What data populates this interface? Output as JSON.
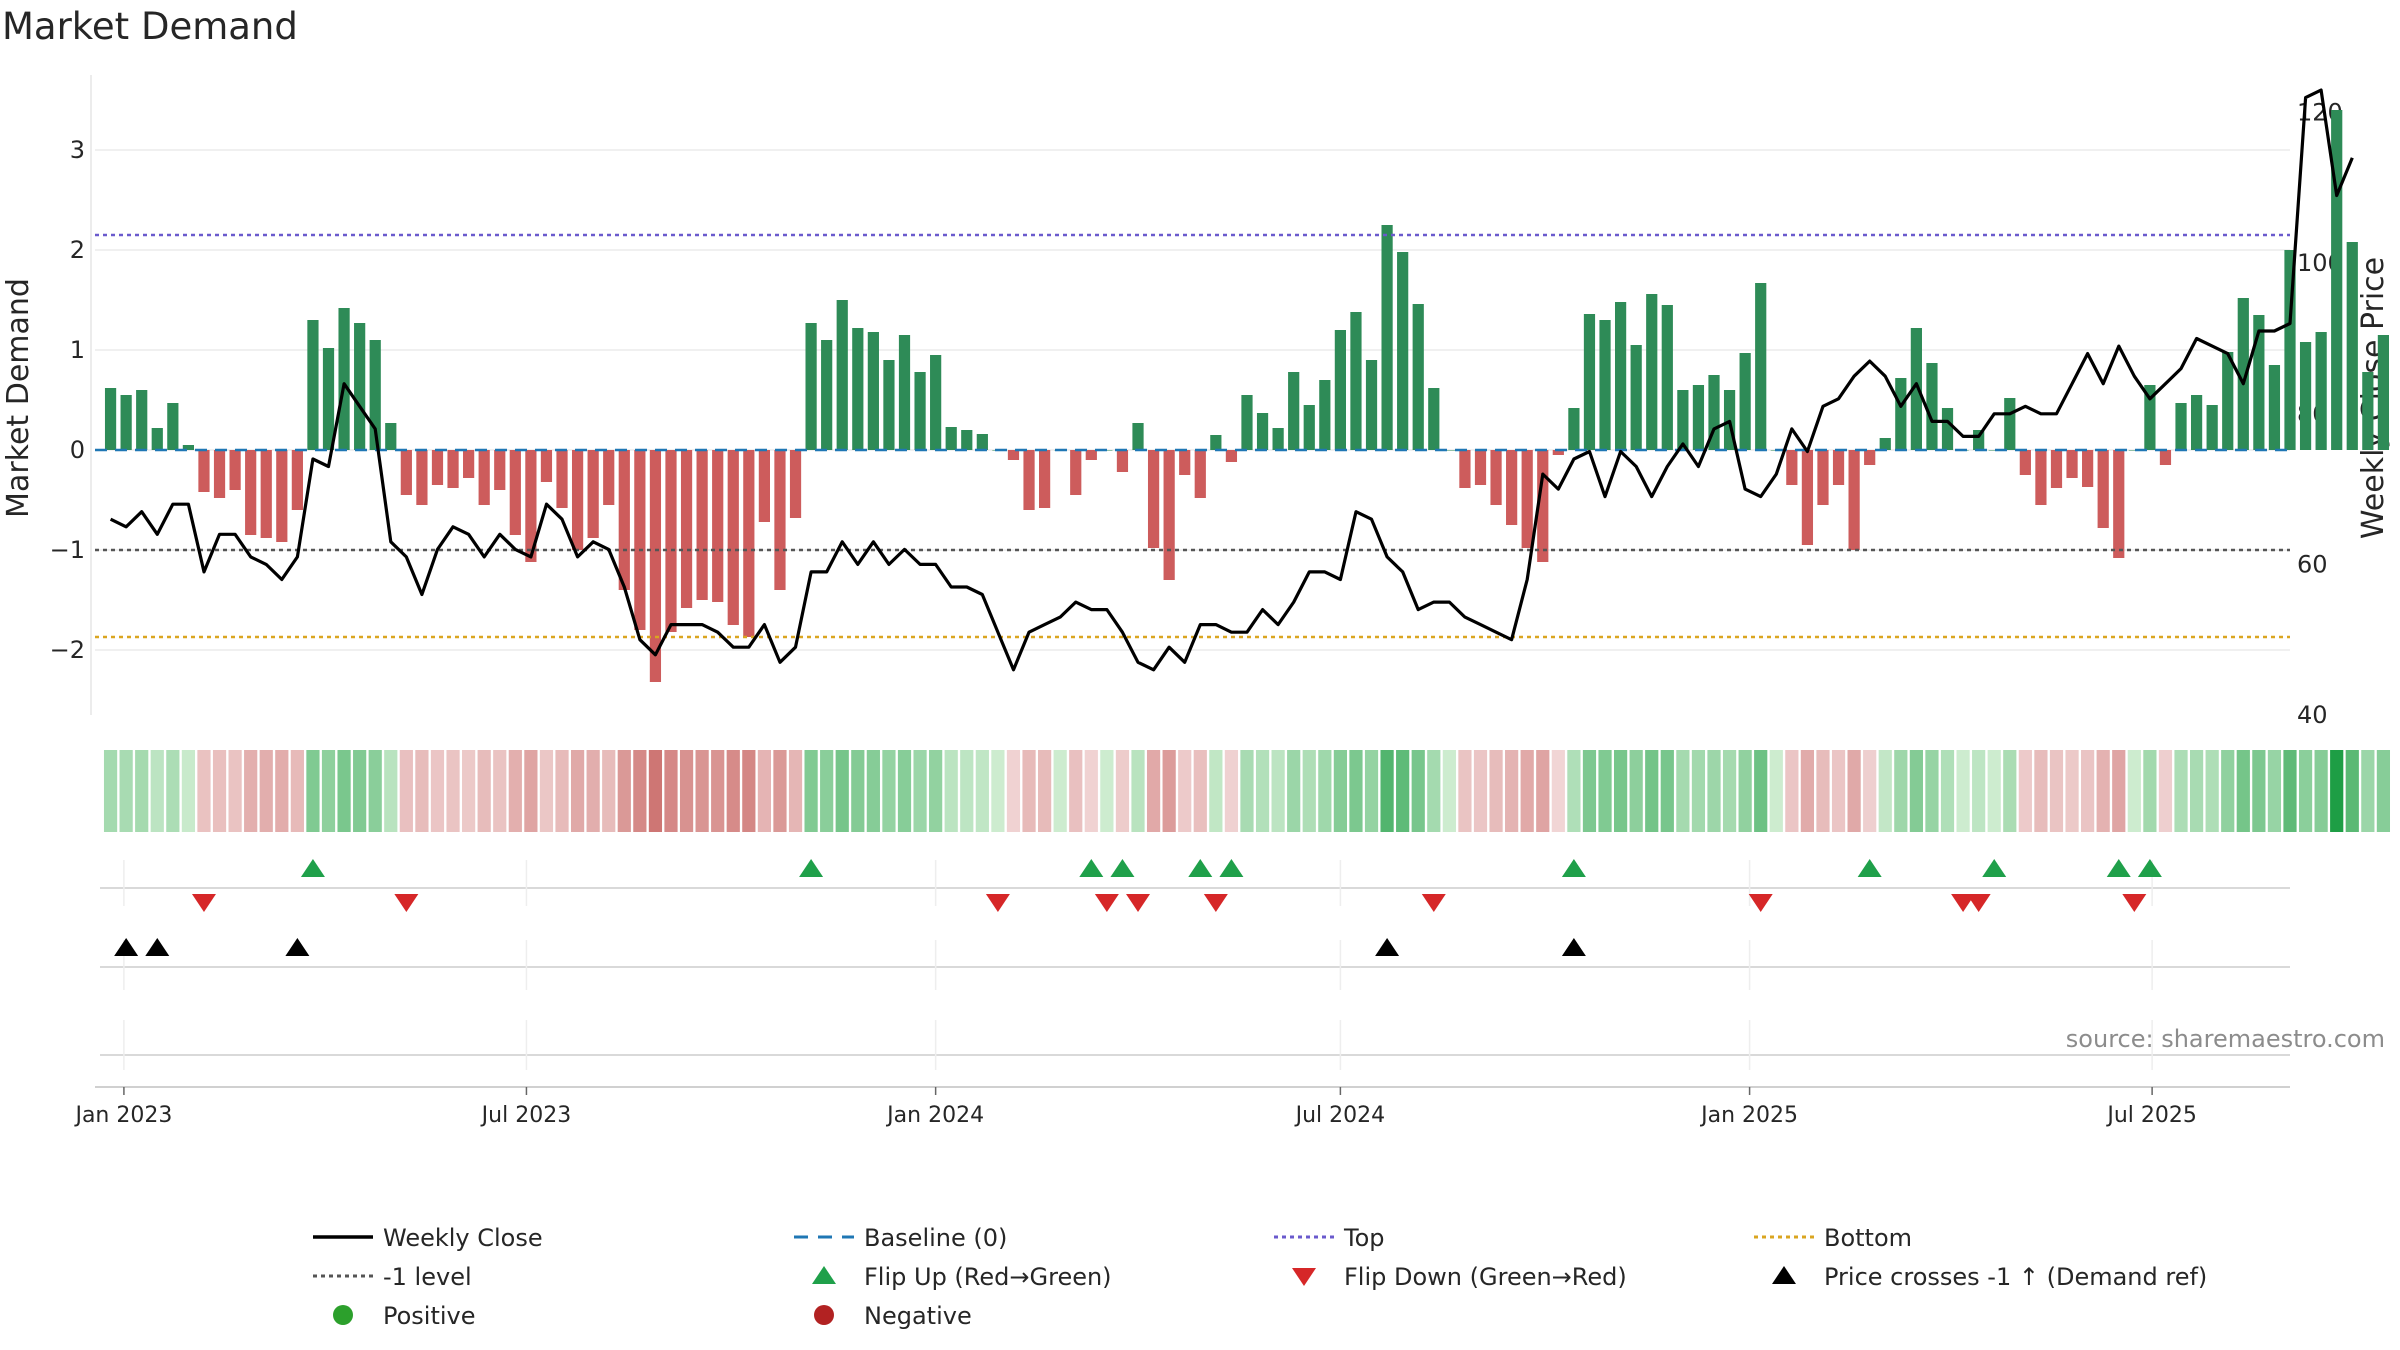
{
  "chart_data": {
    "type": "bar",
    "title": "Market Demand",
    "ylabel_left": "Market Demand",
    "ylabel_right": "Weekly Close Price",
    "source": "source: sharemaestro.com",
    "ylim_left": [
      -2.65,
      3.75
    ],
    "ylim_right": [
      40,
      125
    ],
    "yticks_left": [
      {
        "value": 3,
        "label": "3"
      },
      {
        "value": 2,
        "label": "2"
      },
      {
        "value": 1,
        "label": "1"
      },
      {
        "value": 0,
        "label": "0"
      },
      {
        "value": -1,
        "label": "−1"
      },
      {
        "value": -2,
        "label": "−2"
      }
    ],
    "yticks_right": [
      {
        "value": 120,
        "label": "120"
      },
      {
        "value": 100,
        "label": "100"
      },
      {
        "value": 80,
        "label": "80"
      },
      {
        "value": 60,
        "label": "60"
      },
      {
        "value": 40,
        "label": "40"
      }
    ],
    "x_start": "2022-12-19",
    "x_end": "2025-09-01",
    "week_start": "2022-12-26",
    "xticks": [
      {
        "date": "2023-01-01",
        "label": "Jan 2023"
      },
      {
        "date": "2023-07-01",
        "label": "Jul 2023"
      },
      {
        "date": "2024-01-01",
        "label": "Jan 2024"
      },
      {
        "date": "2024-07-01",
        "label": "Jul 2024"
      },
      {
        "date": "2025-01-01",
        "label": "Jan 2025"
      },
      {
        "date": "2025-07-01",
        "label": "Jul 2025"
      }
    ],
    "reference_lines": {
      "baseline": 0,
      "top": 2.15,
      "minus1": -1,
      "bottom": -1.87
    },
    "demand": [
      0.62,
      0.55,
      0.6,
      0.22,
      0.47,
      0.05,
      -0.42,
      -0.48,
      -0.4,
      -0.85,
      -0.88,
      -0.92,
      -0.6,
      1.3,
      1.02,
      1.42,
      1.27,
      1.1,
      0.27,
      -0.45,
      -0.55,
      -0.35,
      -0.38,
      -0.28,
      -0.55,
      -0.4,
      -0.85,
      -1.12,
      -0.32,
      -0.58,
      -1.0,
      -0.88,
      -0.55,
      -1.4,
      -1.8,
      -2.32,
      -1.82,
      -1.58,
      -1.5,
      -1.52,
      -1.75,
      -1.87,
      -0.72,
      -1.4,
      -0.68,
      1.27,
      1.1,
      1.5,
      1.22,
      1.18,
      0.9,
      1.15,
      0.78,
      0.95,
      0.23,
      0.2,
      0.16,
      0.0,
      -0.1,
      -0.6,
      -0.58,
      0.0,
      -0.45,
      -0.1,
      0.0,
      -0.22,
      0.27,
      -0.98,
      -1.3,
      -0.25,
      -0.48,
      0.15,
      -0.12,
      0.55,
      0.37,
      0.22,
      0.78,
      0.45,
      0.7,
      1.2,
      1.38,
      0.9,
      2.25,
      1.98,
      1.46,
      0.62,
      0.0,
      -0.38,
      -0.35,
      -0.55,
      -0.75,
      -0.98,
      -1.12,
      -0.05,
      0.42,
      1.36,
      1.3,
      1.48,
      1.05,
      1.56,
      1.45,
      0.6,
      0.65,
      0.75,
      0.6,
      0.97,
      1.67,
      0.0,
      -0.35,
      -0.95,
      -0.55,
      -0.35,
      -1.0,
      -0.15,
      0.12,
      0.72,
      1.22,
      0.87,
      0.42,
      0.0,
      0.2,
      0.0,
      0.52,
      -0.25,
      -0.55,
      -0.38,
      -0.28,
      -0.37,
      -0.78,
      -1.08,
      0.0,
      0.65,
      -0.15,
      0.47,
      0.55,
      0.45,
      0.98,
      1.52,
      1.35,
      0.85,
      2.0,
      1.08,
      1.18,
      3.4,
      2.08,
      0.78,
      1.15
    ],
    "price": [
      66,
      65,
      67,
      64,
      68,
      68,
      59,
      64,
      64,
      61,
      60,
      58,
      61,
      74,
      73,
      84,
      81,
      78,
      63,
      61,
      56,
      62,
      65,
      64,
      61,
      64,
      62,
      61,
      68,
      66,
      61,
      63,
      62,
      57,
      50,
      48,
      52,
      52,
      52,
      51,
      49,
      49,
      52,
      47,
      49,
      59,
      59,
      63,
      60,
      63,
      60,
      62,
      60,
      60,
      57,
      57,
      56,
      51,
      46,
      51,
      52,
      53,
      55,
      54,
      54,
      51,
      47,
      46,
      49,
      47,
      52,
      52,
      51,
      51,
      54,
      52,
      55,
      59,
      59,
      58,
      67,
      66,
      61,
      59,
      54,
      55,
      55,
      53,
      52,
      51,
      50,
      58,
      72,
      70,
      74,
      75,
      69,
      75,
      73,
      69,
      73,
      76,
      73,
      78,
      79,
      70,
      69,
      72,
      78,
      75,
      81,
      82,
      85,
      87,
      85,
      81,
      84,
      79,
      79,
      77,
      77,
      80,
      80,
      81,
      80,
      80,
      84,
      88,
      84,
      89,
      85,
      82,
      84,
      86,
      90,
      89,
      88,
      84,
      91,
      91,
      92,
      122,
      123,
      109,
      114
    ],
    "flip_up": [
      13,
      45,
      63,
      65,
      70,
      72,
      94,
      113,
      121,
      129,
      131
    ],
    "flip_down": [
      6,
      19,
      57,
      64,
      66,
      71,
      85,
      106,
      119,
      120,
      130
    ],
    "price_cross": [
      1,
      3,
      12,
      82,
      94
    ]
  },
  "legend": {
    "weekly_close": "Weekly Close",
    "baseline": "Baseline (0)",
    "top": "Top",
    "bottom": "Bottom",
    "minus1": "-1 level",
    "flip_up": "Flip Up (Red→Green)",
    "flip_down": "Flip Down (Green→Red)",
    "price_cross": "Price crosses -1 ↑ (Demand ref)",
    "positive": "Positive",
    "negative": "Negative"
  },
  "colors": {
    "positive": "#2e8b57",
    "negative": "#cd5c5c",
    "price_line": "#000000",
    "top_line": "#6a5acd",
    "bottom_line": "#daa520",
    "minus1_line": "#555555",
    "baseline_line": "#1f77b4",
    "flip_up_marker": "#1fa04a",
    "flip_down_marker": "#d62728",
    "cross_marker": "#000000",
    "positive_dot": "#2ca02c",
    "negative_dot": "#b22222"
  }
}
